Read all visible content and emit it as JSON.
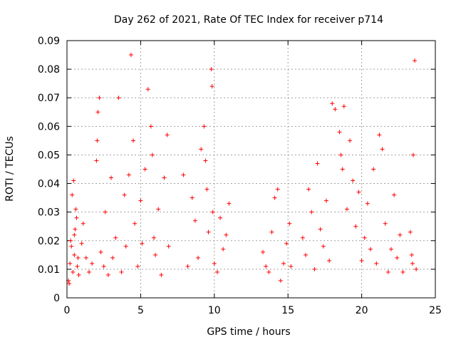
{
  "chart_data": {
    "type": "scatter",
    "title": "Day 262 of 2021, Rate Of TEC Index for receiver p714",
    "xlabel": "GPS time / hours",
    "ylabel": "ROTI / TECUs",
    "xlim": [
      0,
      25
    ],
    "ylim": [
      0,
      0.09
    ],
    "xticks": [
      0,
      5,
      10,
      15,
      20,
      25
    ],
    "xtick_labels": [
      "0",
      "5",
      "10",
      "15",
      "20",
      "25"
    ],
    "yticks": [
      0,
      0.01,
      0.02,
      0.03,
      0.04,
      0.05,
      0.06,
      0.07,
      0.08,
      0.09
    ],
    "ytick_labels": [
      "0",
      "0.01",
      "0.02",
      "0.03",
      "0.04",
      "0.05",
      "0.06",
      "0.07",
      "0.08",
      "0.09"
    ],
    "grid": true,
    "marker": "plus",
    "colors": {
      "series": "#ff0000",
      "grid": "#a0a0a0",
      "axes": "#000000"
    },
    "series": [
      {
        "x": [
          0.1,
          0.2,
          0.3,
          0.4,
          0.5,
          0.55,
          0.6,
          0.7,
          0.8,
          0.35,
          0.45,
          0.65,
          0.75,
          0.25,
          0.15,
          0.5,
          1.0,
          1.1,
          1.3,
          1.5,
          1.7,
          2.0,
          2.05,
          2.1,
          2.2,
          2.3,
          2.5,
          2.6,
          2.8,
          3.0,
          3.1,
          3.3,
          3.5,
          3.7,
          3.9,
          4.0,
          4.2,
          4.35,
          4.5,
          4.6,
          4.8,
          5.0,
          5.1,
          5.3,
          5.5,
          5.7,
          5.8,
          5.9,
          6.0,
          6.2,
          6.4,
          6.6,
          6.8,
          6.9,
          7.9,
          8.2,
          8.5,
          8.7,
          8.9,
          9.1,
          9.3,
          9.4,
          9.5,
          9.6,
          9.8,
          9.85,
          9.9,
          10.0,
          10.2,
          10.4,
          10.6,
          10.8,
          11.0,
          13.3,
          13.5,
          13.7,
          13.9,
          14.1,
          14.3,
          14.5,
          14.7,
          14.9,
          15.1,
          15.2,
          16.0,
          16.2,
          16.4,
          16.6,
          16.8,
          17.0,
          17.2,
          17.4,
          17.6,
          17.8,
          18.0,
          18.2,
          18.5,
          18.6,
          18.7,
          18.8,
          19.0,
          19.2,
          19.4,
          19.6,
          19.8,
          20.0,
          20.2,
          20.4,
          20.6,
          20.8,
          21.0,
          21.2,
          21.4,
          21.6,
          21.8,
          22.0,
          22.2,
          22.4,
          22.6,
          22.8,
          23.3,
          23.4,
          23.5,
          23.6,
          23.7,
          23.45
        ],
        "y": [
          0.006,
          0.012,
          0.018,
          0.009,
          0.015,
          0.024,
          0.031,
          0.011,
          0.008,
          0.036,
          0.041,
          0.028,
          0.014,
          0.02,
          0.005,
          0.022,
          0.019,
          0.026,
          0.014,
          0.009,
          0.012,
          0.048,
          0.055,
          0.065,
          0.07,
          0.016,
          0.011,
          0.03,
          0.008,
          0.042,
          0.014,
          0.021,
          0.07,
          0.009,
          0.036,
          0.018,
          0.043,
          0.085,
          0.055,
          0.026,
          0.011,
          0.034,
          0.019,
          0.045,
          0.073,
          0.06,
          0.05,
          0.021,
          0.015,
          0.031,
          0.008,
          0.042,
          0.057,
          0.018,
          0.043,
          0.011,
          0.035,
          0.027,
          0.014,
          0.052,
          0.06,
          0.048,
          0.038,
          0.023,
          0.08,
          0.074,
          0.03,
          0.012,
          0.009,
          0.028,
          0.017,
          0.022,
          0.033,
          0.016,
          0.011,
          0.009,
          0.023,
          0.035,
          0.038,
          0.006,
          0.012,
          0.019,
          0.026,
          0.011,
          0.021,
          0.015,
          0.038,
          0.03,
          0.01,
          0.047,
          0.024,
          0.018,
          0.034,
          0.013,
          0.068,
          0.066,
          0.058,
          0.05,
          0.045,
          0.067,
          0.031,
          0.055,
          0.041,
          0.025,
          0.037,
          0.013,
          0.021,
          0.033,
          0.017,
          0.045,
          0.012,
          0.057,
          0.052,
          0.026,
          0.009,
          0.017,
          0.036,
          0.014,
          0.022,
          0.009,
          0.023,
          0.015,
          0.05,
          0.083,
          0.01,
          0.012
        ]
      }
    ]
  }
}
